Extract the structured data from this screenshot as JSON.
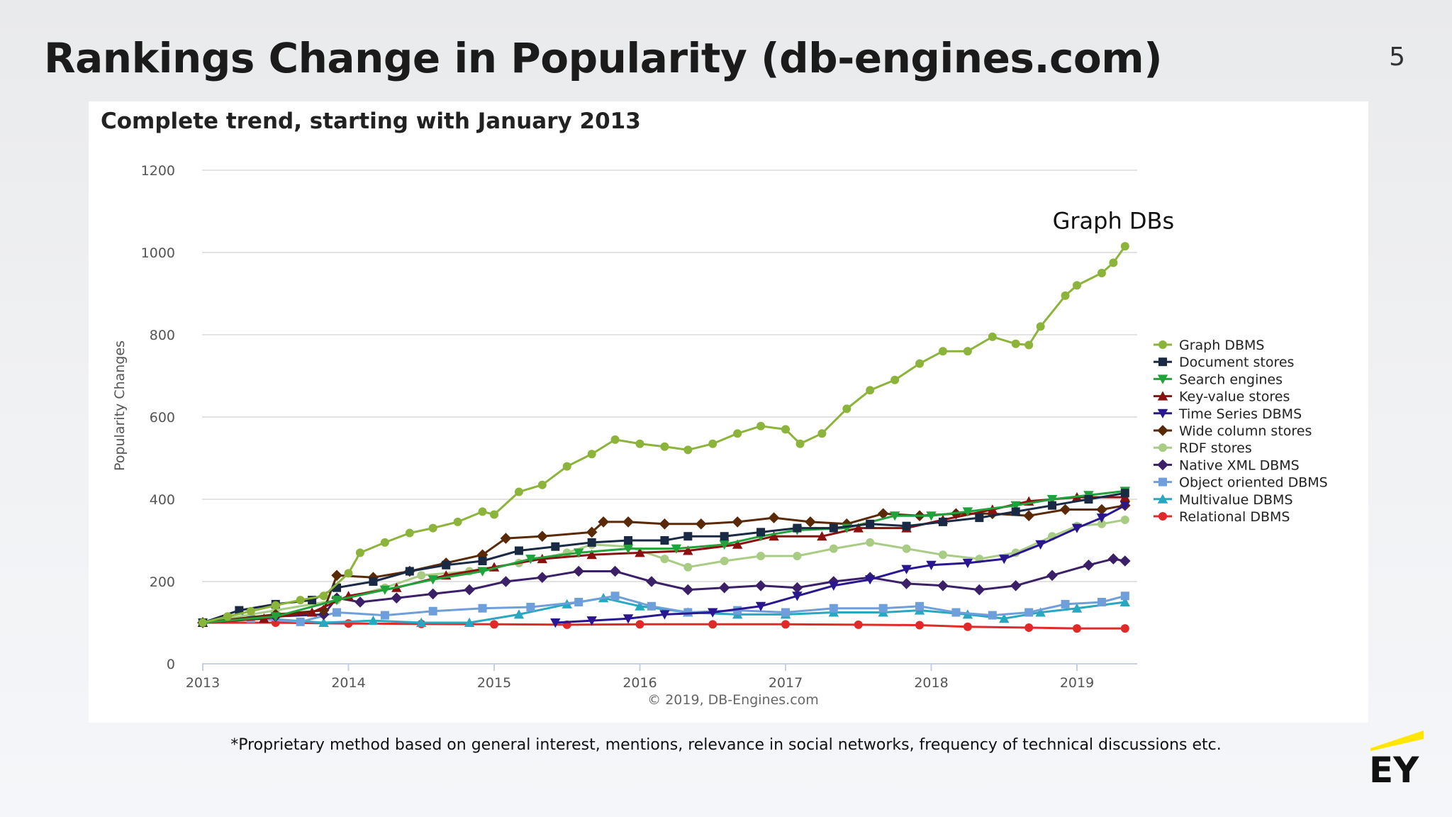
{
  "slide": {
    "title": "Rankings Change in Popularity (db-engines.com)",
    "number": "5",
    "footnote": "*Proprietary method based on general interest, mentions, relevance in social networks, frequency of technical discussions etc.",
    "logo_text": "EY",
    "logo_color": "#ffe600"
  },
  "chart_data": {
    "type": "line",
    "title": "Complete trend, starting with January 2013",
    "ylabel": "Popularity Changes",
    "xlabel": "",
    "credit": "© 2019, DB-Engines.com",
    "annotation": {
      "text": "Graph DBs",
      "x": 2019.25,
      "y": 1015
    },
    "xlim": [
      2013,
      2019.42
    ],
    "ylim": [
      0,
      1200
    ],
    "x_ticks": [
      2013,
      2014,
      2015,
      2016,
      2017,
      2018,
      2019
    ],
    "y_ticks": [
      0,
      200,
      400,
      600,
      800,
      1000,
      1200
    ],
    "grid": true,
    "legend_position": "right",
    "series": [
      {
        "name": "Graph DBMS",
        "color": "#8cb43a",
        "marker": "circle",
        "points": [
          [
            2013,
            100
          ],
          [
            2013.17,
            115
          ],
          [
            2013.33,
            128
          ],
          [
            2013.5,
            142
          ],
          [
            2013.67,
            155
          ],
          [
            2013.83,
            165
          ],
          [
            2014,
            220
          ],
          [
            2014.08,
            270
          ],
          [
            2014.25,
            295
          ],
          [
            2014.42,
            318
          ],
          [
            2014.58,
            330
          ],
          [
            2014.75,
            345
          ],
          [
            2014.92,
            370
          ],
          [
            2015,
            363
          ],
          [
            2015.17,
            418
          ],
          [
            2015.33,
            435
          ],
          [
            2015.5,
            480
          ],
          [
            2015.67,
            510
          ],
          [
            2015.83,
            545
          ],
          [
            2016,
            535
          ],
          [
            2016.17,
            528
          ],
          [
            2016.33,
            520
          ],
          [
            2016.5,
            535
          ],
          [
            2016.67,
            560
          ],
          [
            2016.83,
            578
          ],
          [
            2017,
            570
          ],
          [
            2017.1,
            535
          ],
          [
            2017.25,
            560
          ],
          [
            2017.42,
            620
          ],
          [
            2017.58,
            665
          ],
          [
            2017.75,
            690
          ],
          [
            2017.92,
            730
          ],
          [
            2018.08,
            760
          ],
          [
            2018.25,
            760
          ],
          [
            2018.42,
            795
          ],
          [
            2018.58,
            778
          ],
          [
            2018.67,
            775
          ],
          [
            2018.75,
            820
          ],
          [
            2018.92,
            895
          ],
          [
            2019,
            920
          ],
          [
            2019.17,
            950
          ],
          [
            2019.25,
            975
          ],
          [
            2019.33,
            1015
          ]
        ]
      },
      {
        "name": "Document stores",
        "color": "#1a2a44",
        "marker": "square",
        "points": [
          [
            2013,
            100
          ],
          [
            2013.25,
            130
          ],
          [
            2013.5,
            145
          ],
          [
            2013.75,
            155
          ],
          [
            2013.92,
            185
          ],
          [
            2014.17,
            200
          ],
          [
            2014.42,
            225
          ],
          [
            2014.67,
            240
          ],
          [
            2014.92,
            250
          ],
          [
            2015.17,
            275
          ],
          [
            2015.42,
            285
          ],
          [
            2015.67,
            295
          ],
          [
            2015.92,
            300
          ],
          [
            2016.17,
            300
          ],
          [
            2016.33,
            310
          ],
          [
            2016.58,
            310
          ],
          [
            2016.83,
            320
          ],
          [
            2017.08,
            330
          ],
          [
            2017.33,
            330
          ],
          [
            2017.58,
            340
          ],
          [
            2017.83,
            335
          ],
          [
            2018.08,
            345
          ],
          [
            2018.33,
            355
          ],
          [
            2018.58,
            370
          ],
          [
            2018.83,
            385
          ],
          [
            2019.08,
            400
          ],
          [
            2019.33,
            415
          ]
        ]
      },
      {
        "name": "Search engines",
        "color": "#22a23a",
        "marker": "triangle-down",
        "points": [
          [
            2013,
            100
          ],
          [
            2013.5,
            115
          ],
          [
            2013.92,
            155
          ],
          [
            2014.25,
            180
          ],
          [
            2014.58,
            205
          ],
          [
            2014.92,
            225
          ],
          [
            2015.25,
            255
          ],
          [
            2015.58,
            270
          ],
          [
            2015.92,
            280
          ],
          [
            2016.25,
            280
          ],
          [
            2016.58,
            290
          ],
          [
            2016.83,
            310
          ],
          [
            2017.08,
            325
          ],
          [
            2017.42,
            330
          ],
          [
            2017.75,
            360
          ],
          [
            2018,
            360
          ],
          [
            2018.25,
            370
          ],
          [
            2018.58,
            385
          ],
          [
            2018.83,
            400
          ],
          [
            2019.08,
            410
          ],
          [
            2019.33,
            420
          ]
        ]
      },
      {
        "name": "Key-value stores",
        "color": "#8b1010",
        "marker": "triangle-up",
        "points": [
          [
            2013,
            100
          ],
          [
            2013.42,
            110
          ],
          [
            2013.75,
            125
          ],
          [
            2014,
            165
          ],
          [
            2014.33,
            185
          ],
          [
            2014.67,
            215
          ],
          [
            2015,
            235
          ],
          [
            2015.33,
            255
          ],
          [
            2015.67,
            265
          ],
          [
            2016,
            270
          ],
          [
            2016.33,
            275
          ],
          [
            2016.67,
            290
          ],
          [
            2016.92,
            310
          ],
          [
            2017.25,
            310
          ],
          [
            2017.5,
            330
          ],
          [
            2017.83,
            330
          ],
          [
            2018.08,
            350
          ],
          [
            2018.42,
            375
          ],
          [
            2018.67,
            395
          ],
          [
            2019,
            405
          ],
          [
            2019.33,
            405
          ]
        ]
      },
      {
        "name": "Time Series DBMS",
        "color": "#2a168f",
        "marker": "triangle-down",
        "points": [
          [
            2015.42,
            100
          ],
          [
            2015.67,
            105
          ],
          [
            2015.92,
            110
          ],
          [
            2016.17,
            120
          ],
          [
            2016.5,
            125
          ],
          [
            2016.83,
            140
          ],
          [
            2017.08,
            165
          ],
          [
            2017.33,
            190
          ],
          [
            2017.58,
            205
          ],
          [
            2017.83,
            230
          ],
          [
            2018,
            240
          ],
          [
            2018.25,
            245
          ],
          [
            2018.5,
            255
          ],
          [
            2018.75,
            290
          ],
          [
            2019,
            330
          ],
          [
            2019.17,
            355
          ],
          [
            2019.33,
            385
          ]
        ]
      },
      {
        "name": "Wide column stores",
        "color": "#5a2a08",
        "marker": "diamond",
        "points": [
          [
            2013,
            100
          ],
          [
            2013.5,
            120
          ],
          [
            2013.83,
            130
          ],
          [
            2013.92,
            215
          ],
          [
            2014.17,
            210
          ],
          [
            2014.42,
            225
          ],
          [
            2014.67,
            245
          ],
          [
            2014.92,
            265
          ],
          [
            2015.08,
            305
          ],
          [
            2015.33,
            310
          ],
          [
            2015.67,
            320
          ],
          [
            2015.75,
            345
          ],
          [
            2015.92,
            345
          ],
          [
            2016.17,
            340
          ],
          [
            2016.42,
            340
          ],
          [
            2016.67,
            345
          ],
          [
            2016.92,
            355
          ],
          [
            2017.17,
            345
          ],
          [
            2017.42,
            340
          ],
          [
            2017.67,
            365
          ],
          [
            2017.92,
            360
          ],
          [
            2018.17,
            365
          ],
          [
            2018.42,
            365
          ],
          [
            2018.67,
            360
          ],
          [
            2018.92,
            375
          ],
          [
            2019.17,
            375
          ],
          [
            2019.33,
            385
          ]
        ]
      },
      {
        "name": "RDF stores",
        "color": "#a8cc84",
        "marker": "circle",
        "points": [
          [
            2013,
            100
          ],
          [
            2013.5,
            130
          ],
          [
            2013.92,
            155
          ],
          [
            2014.25,
            185
          ],
          [
            2014.5,
            215
          ],
          [
            2014.83,
            225
          ],
          [
            2015.17,
            245
          ],
          [
            2015.5,
            270
          ],
          [
            2015.67,
            290
          ],
          [
            2015.92,
            285
          ],
          [
            2016.17,
            255
          ],
          [
            2016.33,
            235
          ],
          [
            2016.58,
            250
          ],
          [
            2016.83,
            262
          ],
          [
            2017.08,
            262
          ],
          [
            2017.33,
            280
          ],
          [
            2017.58,
            295
          ],
          [
            2017.83,
            280
          ],
          [
            2018.08,
            265
          ],
          [
            2018.33,
            255
          ],
          [
            2018.58,
            270
          ],
          [
            2018.83,
            310
          ],
          [
            2019,
            335
          ],
          [
            2019.17,
            340
          ],
          [
            2019.33,
            350
          ]
        ]
      },
      {
        "name": "Native XML DBMS",
        "color": "#3b2068",
        "marker": "diamond",
        "points": [
          [
            2013,
            100
          ],
          [
            2013.5,
            115
          ],
          [
            2013.83,
            120
          ],
          [
            2013.92,
            160
          ],
          [
            2014.08,
            150
          ],
          [
            2014.33,
            160
          ],
          [
            2014.58,
            170
          ],
          [
            2014.83,
            180
          ],
          [
            2015.08,
            200
          ],
          [
            2015.33,
            210
          ],
          [
            2015.58,
            225
          ],
          [
            2015.83,
            225
          ],
          [
            2016.08,
            200
          ],
          [
            2016.33,
            180
          ],
          [
            2016.58,
            185
          ],
          [
            2016.83,
            190
          ],
          [
            2017.08,
            185
          ],
          [
            2017.33,
            200
          ],
          [
            2017.58,
            210
          ],
          [
            2017.83,
            195
          ],
          [
            2018.08,
            190
          ],
          [
            2018.33,
            180
          ],
          [
            2018.58,
            190
          ],
          [
            2018.83,
            215
          ],
          [
            2019.08,
            240
          ],
          [
            2019.25,
            255
          ],
          [
            2019.33,
            250
          ]
        ]
      },
      {
        "name": "Object oriented DBMS",
        "color": "#6f9fdb",
        "marker": "square",
        "points": [
          [
            2013,
            100
          ],
          [
            2013.33,
            110
          ],
          [
            2013.67,
            102
          ],
          [
            2013.92,
            125
          ],
          [
            2014.25,
            118
          ],
          [
            2014.58,
            128
          ],
          [
            2014.92,
            135
          ],
          [
            2015.25,
            138
          ],
          [
            2015.58,
            150
          ],
          [
            2015.83,
            165
          ],
          [
            2016.08,
            140
          ],
          [
            2016.33,
            125
          ],
          [
            2016.67,
            130
          ],
          [
            2017,
            125
          ],
          [
            2017.33,
            135
          ],
          [
            2017.67,
            135
          ],
          [
            2017.92,
            140
          ],
          [
            2018.17,
            125
          ],
          [
            2018.42,
            118
          ],
          [
            2018.67,
            125
          ],
          [
            2018.92,
            145
          ],
          [
            2019.17,
            150
          ],
          [
            2019.33,
            165
          ]
        ]
      },
      {
        "name": "Multivalue DBMS",
        "color": "#29a7c1",
        "marker": "triangle-up",
        "points": [
          [
            2013,
            100
          ],
          [
            2013.42,
            110
          ],
          [
            2013.83,
            100
          ],
          [
            2014.17,
            105
          ],
          [
            2014.5,
            100
          ],
          [
            2014.83,
            100
          ],
          [
            2015.17,
            120
          ],
          [
            2015.5,
            145
          ],
          [
            2015.75,
            160
          ],
          [
            2016,
            140
          ],
          [
            2016.33,
            125
          ],
          [
            2016.67,
            120
          ],
          [
            2017,
            120
          ],
          [
            2017.33,
            125
          ],
          [
            2017.67,
            125
          ],
          [
            2017.92,
            130
          ],
          [
            2018.25,
            120
          ],
          [
            2018.5,
            110
          ],
          [
            2018.75,
            125
          ],
          [
            2019,
            135
          ],
          [
            2019.33,
            150
          ]
        ]
      },
      {
        "name": "Relational DBMS",
        "color": "#e02a2a",
        "marker": "circle",
        "points": [
          [
            2013,
            100
          ],
          [
            2013.5,
            100
          ],
          [
            2014,
            98
          ],
          [
            2014.5,
            97
          ],
          [
            2015,
            96
          ],
          [
            2015.5,
            95
          ],
          [
            2016,
            96
          ],
          [
            2016.5,
            96
          ],
          [
            2017,
            96
          ],
          [
            2017.5,
            95
          ],
          [
            2017.92,
            94
          ],
          [
            2018.25,
            90
          ],
          [
            2018.67,
            88
          ],
          [
            2019,
            86
          ],
          [
            2019.33,
            86
          ]
        ]
      }
    ]
  }
}
